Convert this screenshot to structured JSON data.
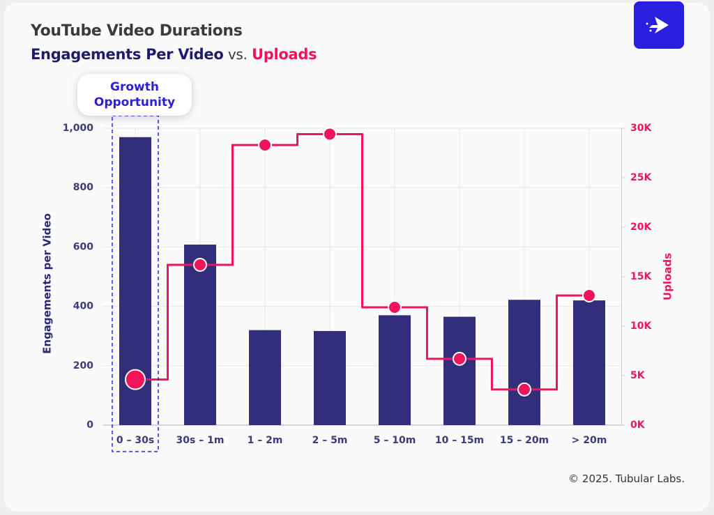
{
  "chart_data": {
    "type": "bar",
    "title": "YouTube Video Durations",
    "subtitle_connector": "vs.",
    "annotation": "Growth Opportunity",
    "source": "© 2025. Tubular Labs.",
    "categories": [
      "0 – 30s",
      "30s – 1m",
      "1 – 2m",
      "2 – 5m",
      "5 – 10m",
      "10 – 15m",
      "15 – 20m",
      "> 20m"
    ],
    "highlight_category": 0,
    "series": [
      {
        "name": "Engagements Per Video",
        "type": "bar",
        "color": "#332e7c",
        "values": [
          970,
          608,
          320,
          317,
          370,
          365,
          422,
          420
        ]
      },
      {
        "name": "Uploads",
        "type": "step",
        "axis": "y2",
        "color": "#f0145a",
        "values": [
          4600,
          16200,
          28300,
          29400,
          11900,
          6700,
          3600,
          13100
        ]
      }
    ],
    "ylabel": "Engagements per Video",
    "y2label": "Uploads",
    "ylim": [
      0,
      1000
    ],
    "yticks": [
      0,
      200,
      400,
      600,
      800,
      {
        "value": 1000,
        "label": "1,000"
      }
    ],
    "y2lim": [
      0,
      30000
    ],
    "y2ticks": [
      {
        "value": 0,
        "label": "0K"
      },
      {
        "value": 5000,
        "label": "5K"
      },
      {
        "value": 10000,
        "label": "10K"
      },
      {
        "value": 15000,
        "label": "15K"
      },
      {
        "value": 20000,
        "label": "20K"
      },
      {
        "value": 25000,
        "label": "25K"
      },
      {
        "value": 30000,
        "label": "30K"
      }
    ],
    "grid": true
  }
}
